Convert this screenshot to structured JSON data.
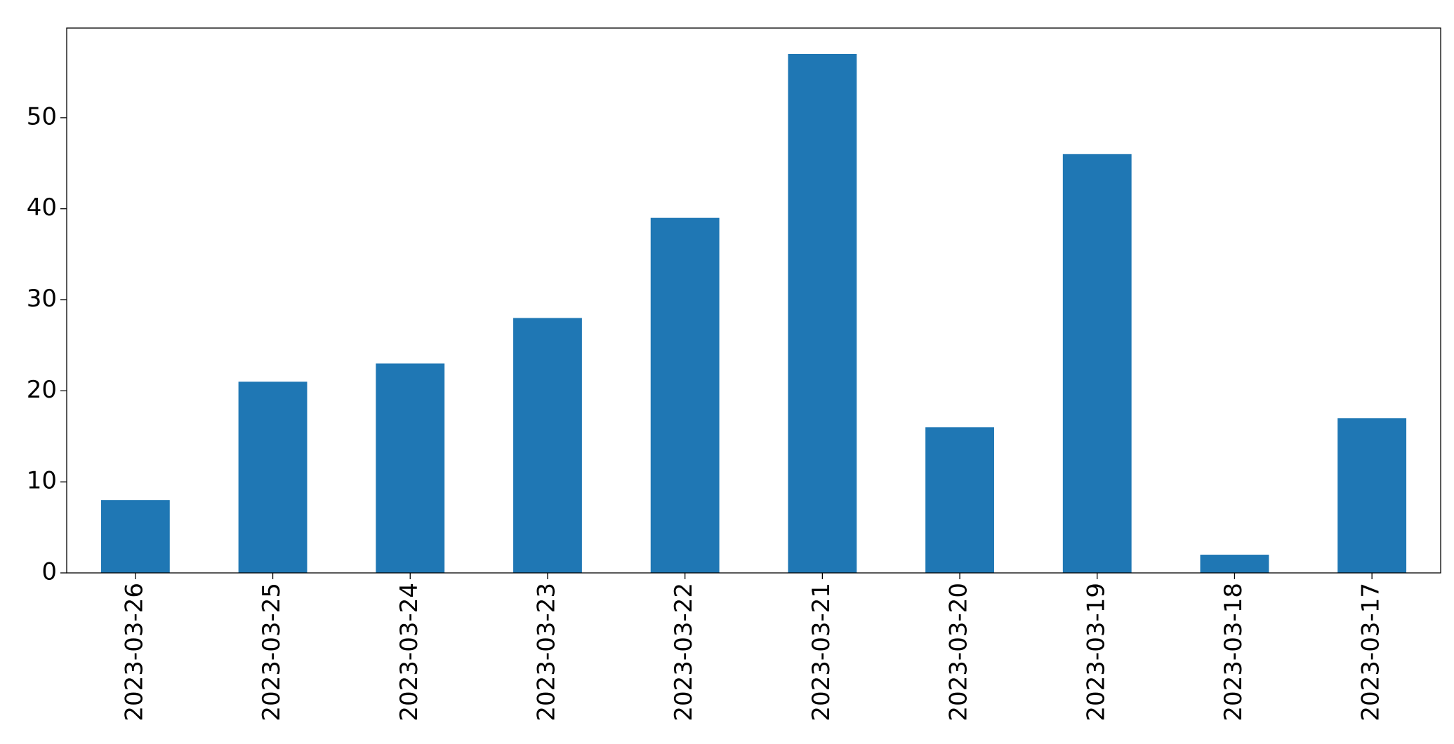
{
  "chart_data": {
    "type": "bar",
    "categories": [
      "2023-03-26",
      "2023-03-25",
      "2023-03-24",
      "2023-03-23",
      "2023-03-22",
      "2023-03-21",
      "2023-03-20",
      "2023-03-19",
      "2023-03-18",
      "2023-03-17"
    ],
    "values": [
      8,
      21,
      23,
      28,
      39,
      57,
      16,
      46,
      2,
      17
    ],
    "color": "#1f77b4",
    "ylim": [
      0,
      59.85
    ],
    "yticks": [
      0,
      10,
      20,
      30,
      40,
      50
    ],
    "grid": false
  }
}
